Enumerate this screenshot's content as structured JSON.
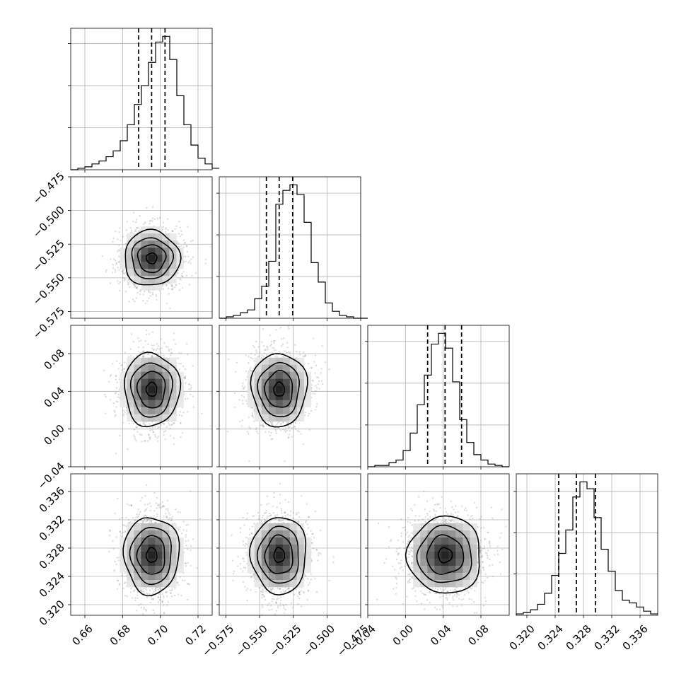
{
  "chart_data": {
    "type": "corner",
    "title": "",
    "grid": true,
    "n_parameters": 4,
    "parameters": [
      {
        "label": "",
        "range": [
          0.6525,
          0.7275
        ],
        "ticks": [
          0.66,
          0.68,
          0.7,
          0.72
        ],
        "tick_labels": [
          "0.66",
          "0.68",
          "0.70",
          "0.72"
        ],
        "quantiles": [
          0.6885,
          0.6954,
          0.7025
        ],
        "median": 0.6954,
        "sigma": 0.007,
        "hist_x0": 0.6525,
        "hist_width": 0.00375,
        "hist_counts": [
          0,
          1,
          2,
          4,
          6,
          9,
          13,
          20,
          31,
          45,
          58,
          74,
          88,
          92,
          76,
          51,
          31,
          17,
          8,
          4,
          1
        ]
      },
      {
        "label": "",
        "range": [
          -0.58,
          -0.475
        ],
        "ticks": [
          -0.575,
          -0.55,
          -0.525,
          -0.5,
          -0.475
        ],
        "tick_labels": [
          "−0.575",
          "−0.550",
          "−0.525",
          "−0.500",
          "−0.475"
        ],
        "quantiles": [
          -0.545,
          -0.5355,
          -0.5255
        ],
        "median": -0.5355,
        "sigma": 0.0098,
        "hist_x0": -0.58,
        "hist_width": 0.00525,
        "hist_counts": [
          0,
          1,
          2,
          4,
          6,
          14,
          23,
          41,
          82,
          92,
          96,
          89,
          69,
          40,
          26,
          11,
          5,
          2,
          1,
          0,
          0
        ]
      },
      {
        "label": "",
        "range": [
          -0.04,
          0.11
        ],
        "ticks": [
          -0.04,
          0.0,
          0.04,
          0.08
        ],
        "tick_labels": [
          "−0.04",
          "0.00",
          "0.04",
          "0.08"
        ],
        "quantiles": [
          0.0235,
          0.042,
          0.0595
        ],
        "median": 0.042,
        "sigma": 0.0185,
        "hist_x0": -0.04,
        "hist_width": 0.0075,
        "hist_counts": [
          0,
          1,
          1,
          3,
          5,
          12,
          25,
          46,
          68,
          91,
          99,
          88,
          63,
          35,
          18,
          9,
          5,
          2,
          1,
          0
        ]
      },
      {
        "label": "",
        "range": [
          0.3185,
          0.3385
        ],
        "ticks": [
          0.32,
          0.324,
          0.328,
          0.332,
          0.336
        ],
        "tick_labels": [
          "0.320",
          "0.324",
          "0.328",
          "0.332",
          "0.336"
        ],
        "quantiles": [
          0.3245,
          0.327,
          0.3297
        ],
        "median": 0.327,
        "sigma": 0.0026,
        "hist_x0": 0.3185,
        "hist_width": 0.001,
        "hist_counts": [
          1,
          2,
          4,
          8,
          16,
          29,
          45,
          62,
          86,
          97,
          92,
          71,
          48,
          32,
          18,
          11,
          9,
          6,
          3,
          1
        ]
      }
    ],
    "layout": {
      "diag_first_tick": [
        4,
        5,
        3,
        3
      ],
      "diag_tick_count": [
        3,
        3,
        3,
        3
      ]
    }
  }
}
